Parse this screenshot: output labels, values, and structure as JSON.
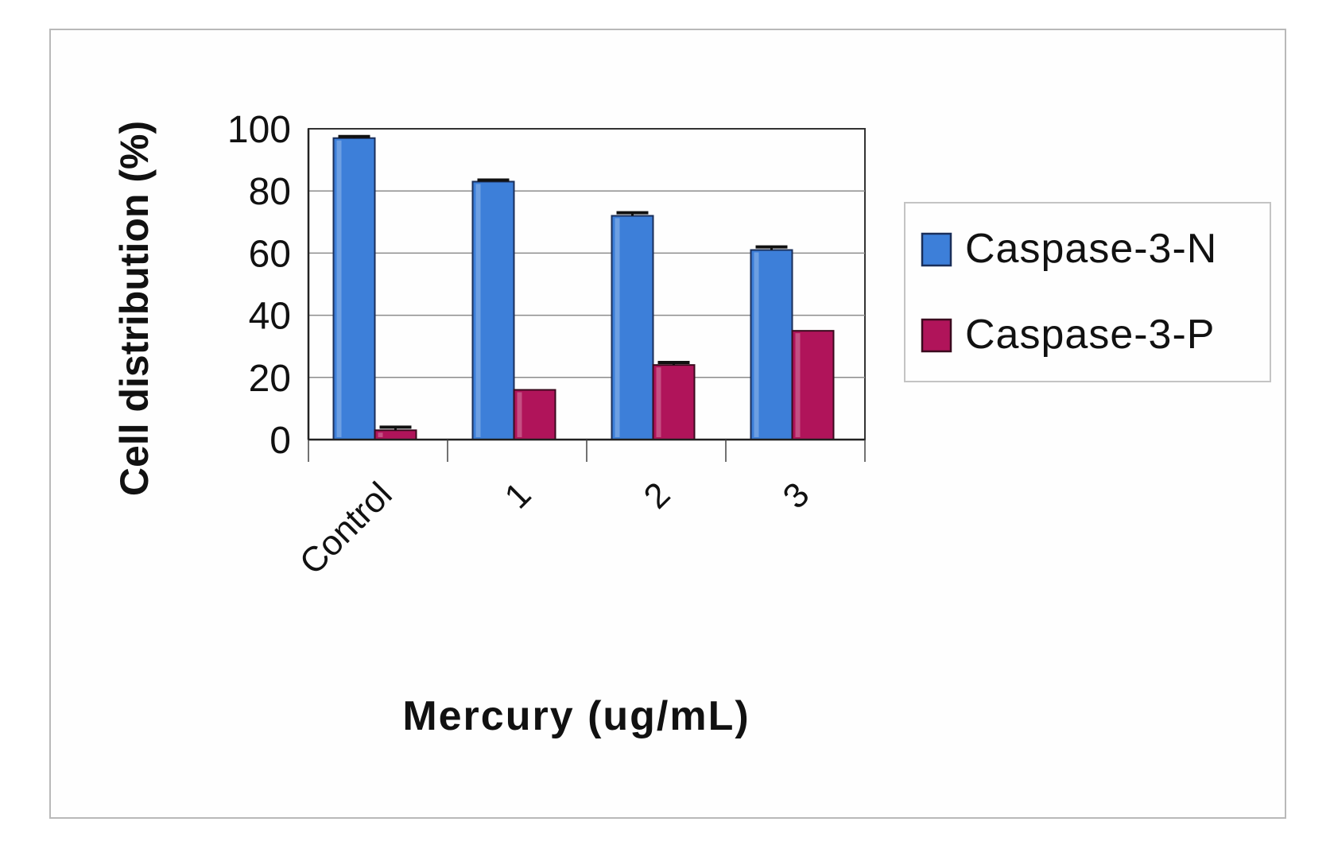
{
  "chart_data": {
    "type": "bar",
    "title": "",
    "xlabel": "Mercury (ug/mL)",
    "ylabel": "Cell distribution (%)",
    "categories": [
      "Control",
      "1",
      "2",
      "3"
    ],
    "ylim": [
      0,
      100
    ],
    "yticks": [
      "0",
      "20",
      "40",
      "60",
      "80",
      "100"
    ],
    "grid": true,
    "legend_position": "right",
    "series": [
      {
        "name": "Caspase-3-N",
        "color": "#3d7fd9",
        "values": [
          97,
          83,
          72,
          61
        ],
        "errors": [
          0.5,
          0.5,
          1,
          1
        ]
      },
      {
        "name": "Caspase-3-P",
        "color": "#b0145a",
        "values": [
          3,
          16,
          24,
          35
        ],
        "errors": [
          1,
          0,
          0.8,
          0
        ]
      }
    ]
  }
}
